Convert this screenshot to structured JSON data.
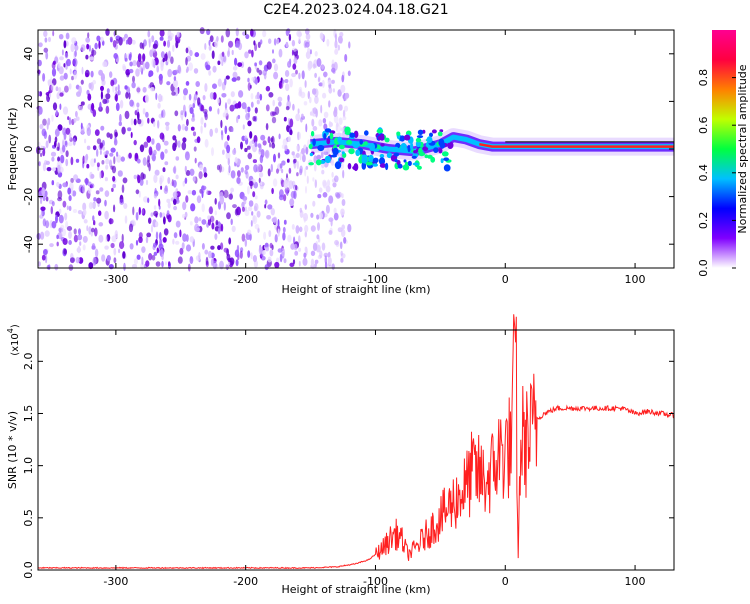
{
  "title": "C2E4.2023.024.04.18.G21",
  "chart_data": [
    {
      "type": "heatmap",
      "panel": "spectrogram",
      "xlabel": "Height of straight line (km)",
      "ylabel": "Frequency (Hz)",
      "xlim": [
        -360,
        130
      ],
      "ylim": [
        -50,
        50
      ],
      "x_ticks": [
        -300,
        -200,
        -100,
        0,
        100
      ],
      "y_ticks": [
        -40,
        -20,
        0,
        20,
        40
      ],
      "noise_region": {
        "x_range": [
          -360,
          -140
        ],
        "y_range": [
          -50,
          50
        ],
        "note_color": "#7000e0"
      },
      "signal_trace": [
        {
          "x": -150,
          "y": 2
        },
        {
          "x": -130,
          "y": 3
        },
        {
          "x": -110,
          "y": 2
        },
        {
          "x": -90,
          "y": 0
        },
        {
          "x": -70,
          "y": -1
        },
        {
          "x": -50,
          "y": 2
        },
        {
          "x": -40,
          "y": 5
        },
        {
          "x": -30,
          "y": 4
        },
        {
          "x": -20,
          "y": 2
        },
        {
          "x": -10,
          "y": 1
        },
        {
          "x": 0,
          "y": 1
        },
        {
          "x": 20,
          "y": 1
        },
        {
          "x": 40,
          "y": 1
        },
        {
          "x": 60,
          "y": 1
        },
        {
          "x": 80,
          "y": 1
        },
        {
          "x": 100,
          "y": 1
        },
        {
          "x": 130,
          "y": 1
        }
      ],
      "colorbar": {
        "label": "Normalized spectral amplitude",
        "range": [
          0.0,
          1.0
        ],
        "ticks": [
          "0.0",
          "0.2",
          "0.4",
          "0.6",
          "0.8"
        ],
        "colors": [
          "#ffffff",
          "#8000ff",
          "#0000ff",
          "#00c0ff",
          "#00ff40",
          "#c0ff00",
          "#ff8000",
          "#ff0040",
          "#ff0090"
        ]
      }
    },
    {
      "type": "line",
      "panel": "snr",
      "xlabel": "Height of straight line (km)",
      "ylabel": "SNR (10 * v/v)",
      "y_multiplier_label": "(x10",
      "y_multiplier_exp": "4",
      "xlim": [
        -360,
        130
      ],
      "ylim": [
        0,
        2.3
      ],
      "x_ticks": [
        -300,
        -200,
        -100,
        0,
        100
      ],
      "y_ticks": [
        "0.0",
        "0.5",
        "1.0",
        "1.5",
        "2.0"
      ],
      "series": [
        {
          "color": "#ff2020",
          "points": [
            [
              -360,
              0.02
            ],
            [
              -300,
              0.02
            ],
            [
              -250,
              0.02
            ],
            [
              -200,
              0.02
            ],
            [
              -150,
              0.02
            ],
            [
              -130,
              0.03
            ],
            [
              -115,
              0.06
            ],
            [
              -105,
              0.1
            ],
            [
              -95,
              0.2
            ],
            [
              -85,
              0.35
            ],
            [
              -80,
              0.3
            ],
            [
              -75,
              0.15
            ],
            [
              -70,
              0.2
            ],
            [
              -60,
              0.35
            ],
            [
              -50,
              0.5
            ],
            [
              -40,
              0.65
            ],
            [
              -30,
              0.8
            ],
            [
              -25,
              0.95
            ],
            [
              -20,
              0.9
            ],
            [
              -15,
              0.85
            ],
            [
              -10,
              0.95
            ],
            [
              -5,
              1.1
            ],
            [
              0,
              1.15
            ],
            [
              5,
              1.2
            ],
            [
              8,
              2.25
            ],
            [
              10,
              0.1
            ],
            [
              12,
              1.3
            ],
            [
              15,
              1.2
            ],
            [
              20,
              1.3
            ],
            [
              25,
              1.45
            ],
            [
              30,
              1.5
            ],
            [
              40,
              1.55
            ],
            [
              60,
              1.55
            ],
            [
              80,
              1.55
            ],
            [
              90,
              1.55
            ],
            [
              100,
              1.5
            ],
            [
              110,
              1.52
            ],
            [
              120,
              1.5
            ],
            [
              130,
              1.48
            ]
          ]
        }
      ]
    }
  ]
}
